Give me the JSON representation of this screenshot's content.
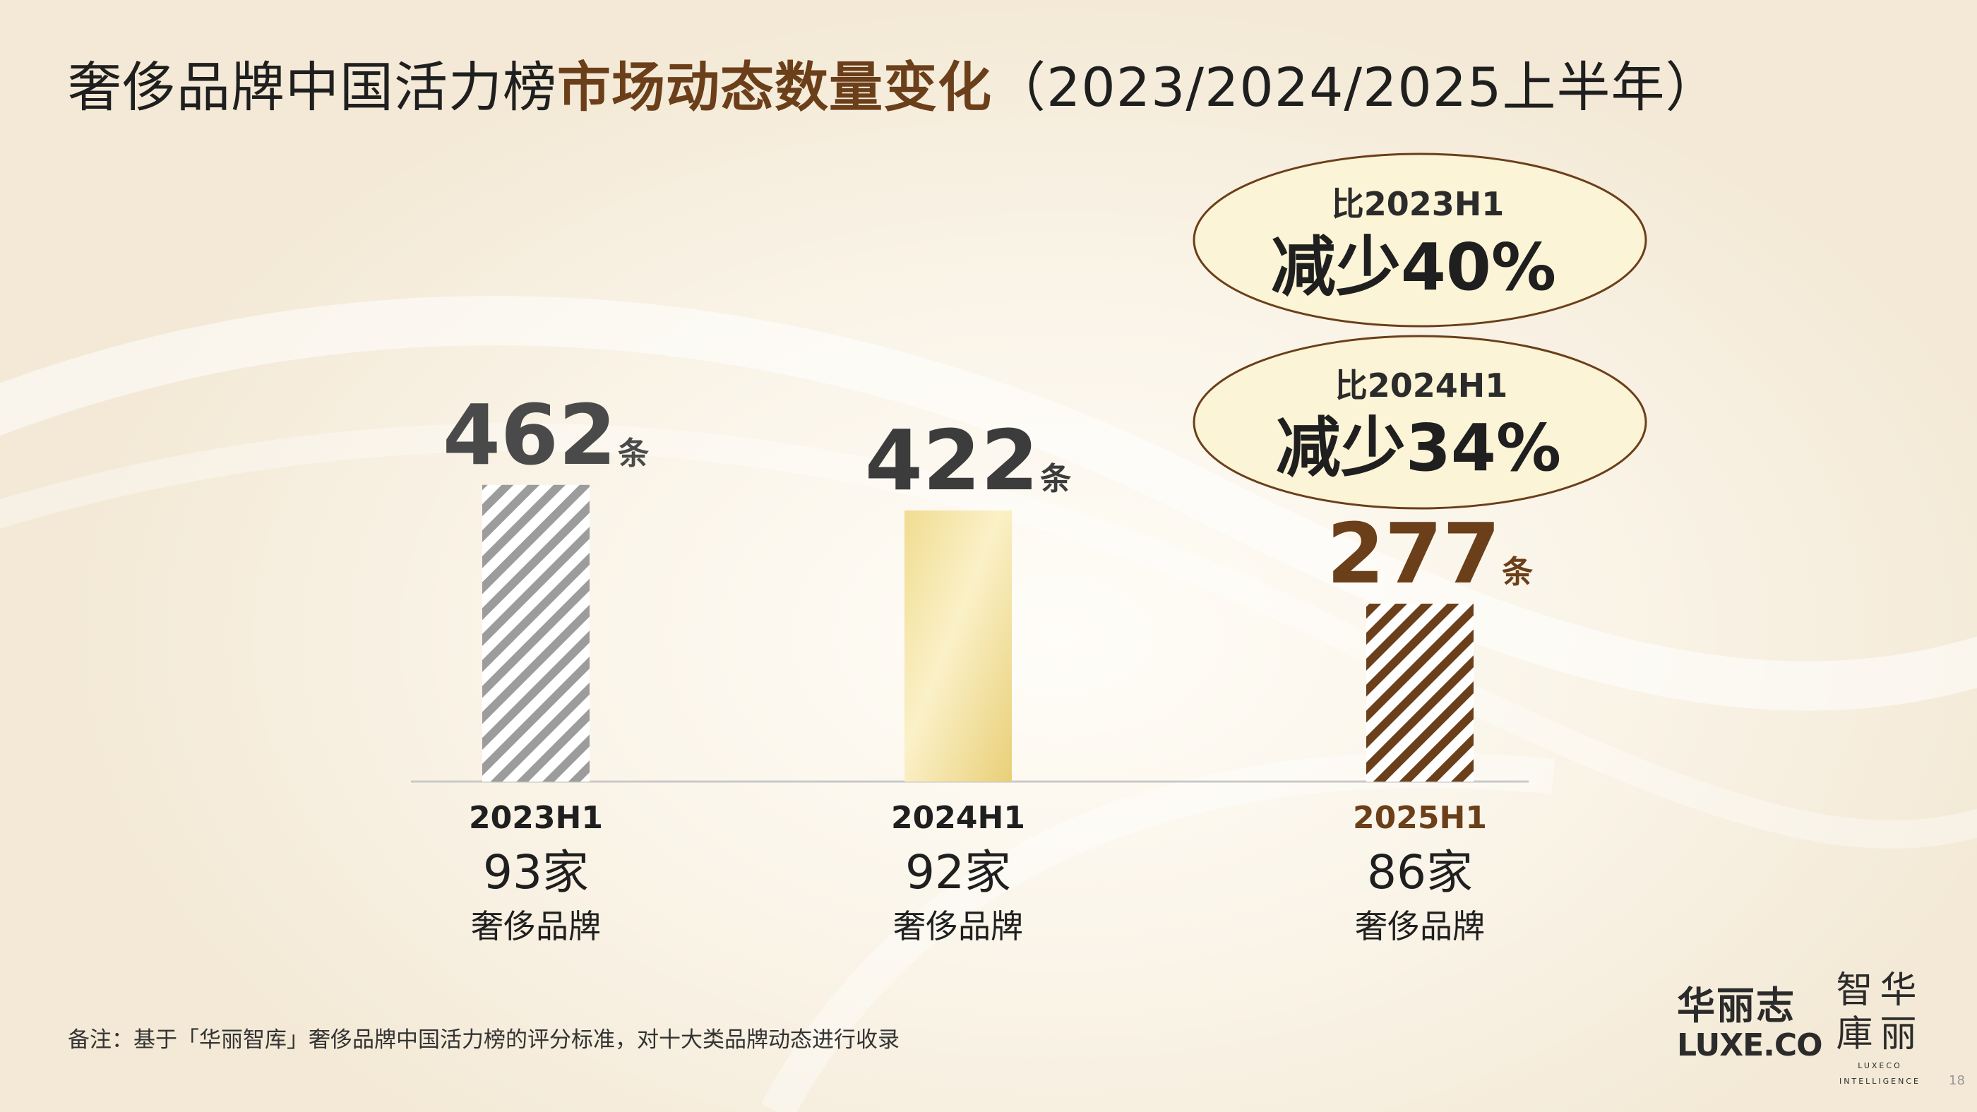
{
  "title": {
    "part1": "奢侈品牌中国活力榜",
    "part2": "市场动态数量变化",
    "part3": "（2023/2024/2025上半年）"
  },
  "chart_data": {
    "type": "bar",
    "categories": [
      "2023H1",
      "2024H1",
      "2025H1"
    ],
    "values": [
      462,
      422,
      277
    ],
    "value_unit": "条",
    "brand_counts": [
      "93家",
      "92家",
      "86家"
    ],
    "brand_label": "奢侈品牌",
    "fills": [
      "grey-stripes",
      "gold-gradient",
      "brown-stripes"
    ],
    "colors": {
      "grey": "#9c9c9c",
      "gold": "#eed989",
      "brown": "#6b3f1a",
      "dark_label": "#4a4a4a"
    },
    "annotations": [
      {
        "line1": "比2023H1",
        "line2": "减少40%"
      },
      {
        "line1": "比2024H1",
        "line2": "减少34%"
      }
    ]
  },
  "footnote": "备注：基于「华丽智库」奢侈品牌中国活力榜的评分标准，对十大类品牌动态进行收录",
  "logo_left": {
    "cn": "华丽志",
    "en": "LUXE.CO"
  },
  "logo_right": {
    "seal": "智华庫丽",
    "sub1": "LUXECO",
    "sub2": "INTELLIGENCE"
  },
  "page_number": "18"
}
